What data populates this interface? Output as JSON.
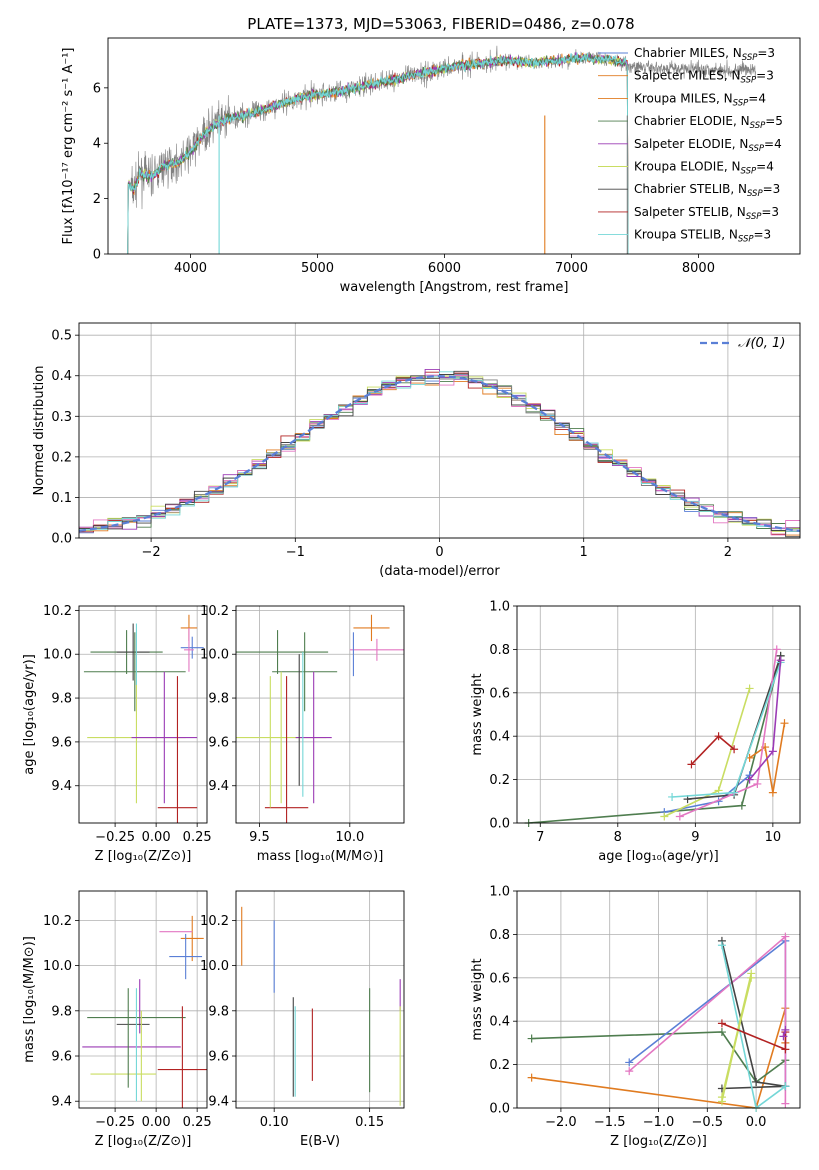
{
  "figure": {
    "title": "PLATE=1373, MJD=53063, FIBERID=0486, z=0.078",
    "colors": {
      "blue": "#5a7fd6",
      "orange": "#e07b20",
      "green": "#4f7d4f",
      "red": "#b22222",
      "purple": "#9b3bb5",
      "olive": "#c9dd62",
      "gray": "#808080",
      "cyan": "#74d7d7",
      "pink": "#e377c2",
      "darkgray": "#444444"
    }
  },
  "chart_data": [
    {
      "id": "spectrum",
      "type": "line",
      "xlabel": "wavelength [Angstrom, rest frame]",
      "ylabel": "Flux [fλ10⁻¹⁷ erg cm⁻² s⁻¹ A⁻¹]",
      "xlim": [
        3350,
        8800
      ],
      "ylim": [
        0,
        7.8
      ],
      "xticks": [
        4000,
        5000,
        6000,
        7000,
        8000
      ],
      "yticks": [
        0,
        2,
        4,
        6
      ],
      "grid": false,
      "legend_position": "right",
      "legend": [
        {
          "label": "Chabrier MILES, N",
          "sub": "SSP",
          "suffix": "=3",
          "color": "#5a7fd6"
        },
        {
          "label": "Salpeter MILES, N",
          "sub": "SSP",
          "suffix": "=3",
          "color": "#e07b20"
        },
        {
          "label": "Kroupa MILES, N",
          "sub": "SSP",
          "suffix": "=4",
          "color": "#e07b20"
        },
        {
          "label": "Chabrier ELODIE, N",
          "sub": "SSP",
          "suffix": "=5",
          "color": "#4f7d4f"
        },
        {
          "label": "Salpeter ELODIE, N",
          "sub": "SSP",
          "suffix": "=4",
          "color": "#9b3bb5"
        },
        {
          "label": "Kroupa ELODIE, N",
          "sub": "SSP",
          "suffix": "=4",
          "color": "#c9dd62"
        },
        {
          "label": "Chabrier STELIB, N",
          "sub": "SSP",
          "suffix": "=3",
          "color": "#444444"
        },
        {
          "label": "Salpeter STELIB, N",
          "sub": "SSP",
          "suffix": "=3",
          "color": "#b22222"
        },
        {
          "label": "Kroupa STELIB, N",
          "sub": "SSP",
          "suffix": "=3",
          "color": "#74d7d7"
        }
      ],
      "model_continuum": {
        "x": [
          3500,
          3550,
          3600,
          3700,
          3800,
          3900,
          4000,
          4100,
          4200,
          4300,
          4400,
          4500,
          4700,
          4900,
          5100,
          5300,
          5500,
          5700,
          5900,
          6100,
          6300,
          6500,
          6700,
          6900,
          7100,
          7300,
          7440
        ],
        "y": [
          2.6,
          2.3,
          2.9,
          2.8,
          3.2,
          3.3,
          3.7,
          4.3,
          4.7,
          4.9,
          5.0,
          5.1,
          5.4,
          5.7,
          5.8,
          6.0,
          6.2,
          6.4,
          6.6,
          6.8,
          6.9,
          7.0,
          6.9,
          7.0,
          7.1,
          7.0,
          6.9
        ]
      },
      "data_range": [
        3530,
        8450
      ]
    },
    {
      "id": "residuals",
      "type": "histogram",
      "xlabel": "(data-model)/error",
      "ylabel": "Normed distribution",
      "xlim": [
        -2.5,
        2.5
      ],
      "ylim": [
        0,
        0.53
      ],
      "xticks": [
        -2,
        -1,
        0,
        1,
        2
      ],
      "yticks": [
        0.0,
        0.1,
        0.2,
        0.3,
        0.4,
        0.5
      ],
      "grid": true,
      "legend_position": "top-right",
      "legend": [
        {
          "label": "𝒩(0, 1)",
          "color": "#5a7fd6",
          "style": "dashed"
        }
      ],
      "bin_width": 0.1
    },
    {
      "id": "age_vs_Z",
      "type": "errorbar",
      "xlabel": "Z [log₁₀(Z/Z⊙)]",
      "ylabel": "age  [log₁₀(age/yr)]",
      "xlim": [
        -0.47,
        0.31
      ],
      "ylim": [
        9.23,
        10.22
      ],
      "xticks": [
        -0.25,
        0.0,
        0.25
      ],
      "xticklabels": [
        "−0.25",
        "0.00",
        "0.25"
      ],
      "yticks": [
        9.4,
        9.6,
        9.8,
        10.0,
        10.2
      ],
      "grid": true,
      "points": [
        {
          "x": 0.2,
          "y": 10.12,
          "xerr": 0.05,
          "yerr": 0.06,
          "color": "#e07b20"
        },
        {
          "x": 0.22,
          "y": 10.03,
          "xerr": 0.07,
          "yerr": 0.05,
          "color": "#5a7fd6"
        },
        {
          "x": 0.2,
          "y": 10.02,
          "xerr": 0.03,
          "yerr": 0.1,
          "color": "#e377c2"
        },
        {
          "x": -0.18,
          "y": 10.01,
          "xerr": 0.22,
          "yerr": 0.1,
          "color": "#4f7d4f"
        },
        {
          "x": -0.14,
          "y": 10.01,
          "xerr": 0.1,
          "yerr": 0.13,
          "color": "#444444"
        },
        {
          "x": -0.13,
          "y": 9.92,
          "xerr": 0.31,
          "yerr": 0.18,
          "color": "#4f7d4f"
        },
        {
          "x": -0.12,
          "y": 9.62,
          "xerr": 0.3,
          "yerr": 0.3,
          "color": "#c9dd62"
        },
        {
          "x": 0.05,
          "y": 9.62,
          "xerr": 0.2,
          "yerr": 0.3,
          "color": "#9b3bb5"
        },
        {
          "x": 0.13,
          "y": 9.3,
          "xerr": 0.12,
          "yerr": 0.6,
          "color": "#b22222"
        },
        {
          "x": -0.12,
          "y": 10.0,
          "xerr": 0.0,
          "yerr": 0.14,
          "color": "#74d7d7"
        }
      ]
    },
    {
      "id": "age_vs_mass",
      "type": "errorbar",
      "xlabel": "mass [log₁₀(M/M⊙)]",
      "ylabel": "",
      "xlim": [
        9.37,
        10.3
      ],
      "ylim": [
        9.23,
        10.22
      ],
      "xticks": [
        9.5,
        10.0
      ],
      "xticklabels": [
        "9.5",
        "10.0"
      ],
      "yticks": [
        9.4,
        9.6,
        9.8,
        10.0,
        10.2
      ],
      "grid": true,
      "points": [
        {
          "x": 10.12,
          "y": 10.12,
          "xerr": 0.1,
          "yerr": 0.06,
          "color": "#e07b20"
        },
        {
          "x": 10.15,
          "y": 10.02,
          "xerr": 0.15,
          "yerr": 0.05,
          "color": "#e377c2"
        },
        {
          "x": 10.02,
          "y": 10.0,
          "xerr": 0.0,
          "yerr": 0.1,
          "color": "#5a7fd6"
        },
        {
          "x": 9.6,
          "y": 10.01,
          "xerr": 0.28,
          "yerr": 0.1,
          "color": "#4f7d4f"
        },
        {
          "x": 9.75,
          "y": 9.92,
          "xerr": 0.18,
          "yerr": 0.18,
          "color": "#4f7d4f"
        },
        {
          "x": 9.62,
          "y": 9.62,
          "xerr": 0.25,
          "yerr": 0.3,
          "color": "#c9dd62"
        },
        {
          "x": 9.8,
          "y": 9.62,
          "xerr": 0.1,
          "yerr": 0.3,
          "color": "#9b3bb5"
        },
        {
          "x": 9.65,
          "y": 9.3,
          "xerr": 0.12,
          "yerr": 0.6,
          "color": "#b22222"
        },
        {
          "x": 9.56,
          "y": 9.6,
          "xerr": 0.0,
          "yerr": 0.3,
          "color": "#c9dd62"
        },
        {
          "x": 9.72,
          "y": 9.7,
          "xerr": 0.0,
          "yerr": 0.3,
          "color": "#444444"
        },
        {
          "x": 9.74,
          "y": 9.68,
          "xerr": 0.0,
          "yerr": 0.33,
          "color": "#74d7d7"
        }
      ]
    },
    {
      "id": "weight_vs_age",
      "type": "line",
      "xlabel": "age  [log₁₀(age/yr)]",
      "ylabel": "mass weight",
      "xlim": [
        6.7,
        10.35
      ],
      "ylim": [
        0,
        1.0
      ],
      "xticks": [
        7,
        8,
        9,
        10
      ],
      "yticks": [
        0.0,
        0.2,
        0.4,
        0.6,
        0.8,
        1.0
      ],
      "grid": true,
      "series": [
        {
          "color": "#4f7d4f",
          "x": [
            6.85,
            9.6,
            10.1
          ],
          "y": [
            0.0,
            0.08,
            0.77
          ]
        },
        {
          "color": "#5a7fd6",
          "x": [
            8.6,
            9.3,
            9.7
          ],
          "y": [
            0.05,
            0.1,
            0.22
          ]
        },
        {
          "color": "#c9dd62",
          "x": [
            8.6,
            9.3,
            9.7
          ],
          "y": [
            0.03,
            0.15,
            0.62
          ]
        },
        {
          "color": "#444444",
          "x": [
            8.9,
            9.5,
            10.1
          ],
          "y": [
            0.11,
            0.13,
            0.77
          ]
        },
        {
          "color": "#b22222",
          "x": [
            8.95,
            9.3,
            9.5
          ],
          "y": [
            0.27,
            0.4,
            0.34
          ]
        },
        {
          "color": "#e07b20",
          "x": [
            9.7,
            9.9,
            10.0,
            10.15
          ],
          "y": [
            0.3,
            0.35,
            0.14,
            0.46
          ]
        },
        {
          "color": "#e377c2",
          "x": [
            8.8,
            9.8,
            10.05
          ],
          "y": [
            0.03,
            0.18,
            0.8
          ]
        },
        {
          "color": "#74d7d7",
          "x": [
            8.7,
            9.5,
            10.1
          ],
          "y": [
            0.12,
            0.14,
            0.74
          ]
        },
        {
          "color": "#9b3bb5",
          "x": [
            9.7,
            10.0,
            10.1
          ],
          "y": [
            0.2,
            0.33,
            0.75
          ]
        }
      ]
    },
    {
      "id": "mass_vs_Z",
      "type": "errorbar",
      "xlabel": "Z [log₁₀(Z/Z⊙)]",
      "ylabel": "mass [log₁₀(M/M⊙)]",
      "xlim": [
        -0.47,
        0.31
      ],
      "ylim": [
        9.37,
        10.33
      ],
      "xticks": [
        -0.25,
        0.0,
        0.25
      ],
      "xticklabels": [
        "−0.25",
        "0.00",
        "0.25"
      ],
      "yticks": [
        9.4,
        9.6,
        9.8,
        10.0,
        10.2
      ],
      "grid": true,
      "points": [
        {
          "x": 0.22,
          "y": 10.12,
          "xerr": 0.07,
          "yerr": 0.1,
          "color": "#e07b20"
        },
        {
          "x": 0.12,
          "y": 10.15,
          "xerr": 0.1,
          "yerr": 0.0,
          "color": "#e377c2"
        },
        {
          "x": 0.18,
          "y": 10.04,
          "xerr": 0.1,
          "yerr": 0.1,
          "color": "#5a7fd6"
        },
        {
          "x": -0.1,
          "y": 9.82,
          "xerr": 0.0,
          "yerr": 0.12,
          "color": "#9b3bb5"
        },
        {
          "x": -0.12,
          "y": 9.77,
          "xerr": 0.3,
          "yerr": 0.0,
          "color": "#4f7d4f"
        },
        {
          "x": -0.14,
          "y": 9.74,
          "xerr": 0.1,
          "yerr": 0.0,
          "color": "#444444"
        },
        {
          "x": -0.15,
          "y": 9.64,
          "xerr": 0.3,
          "yerr": 0.0,
          "color": "#9b3bb5"
        },
        {
          "x": 0.16,
          "y": 9.54,
          "xerr": 0.15,
          "yerr": 0.28,
          "color": "#b22222"
        },
        {
          "x": -0.2,
          "y": 9.52,
          "xerr": 0.2,
          "yerr": 0.0,
          "color": "#c9dd62"
        },
        {
          "x": -0.17,
          "y": 9.68,
          "xerr": 0.0,
          "yerr": 0.22,
          "color": "#4f7d4f"
        },
        {
          "x": -0.12,
          "y": 9.65,
          "xerr": 0.0,
          "yerr": 0.25,
          "color": "#74d7d7"
        },
        {
          "x": -0.09,
          "y": 9.6,
          "xerr": 0.0,
          "yerr": 0.2,
          "color": "#c9dd62"
        }
      ]
    },
    {
      "id": "mass_vs_ebv",
      "type": "errorbar",
      "xlabel": "E(B-V)",
      "ylabel": "",
      "xlim": [
        0.08,
        0.168
      ],
      "ylim": [
        9.37,
        10.33
      ],
      "xticks": [
        0.1,
        0.15
      ],
      "xticklabels": [
        "0.10",
        "0.15"
      ],
      "yticks": [
        9.4,
        9.6,
        9.8,
        10.0,
        10.2
      ],
      "grid": true,
      "points": [
        {
          "x": 0.083,
          "y": 10.13,
          "xerr": 0.0,
          "yerr": 0.13,
          "color": "#e07b20"
        },
        {
          "x": 0.1,
          "y": 10.04,
          "xerr": 0.0,
          "yerr": 0.16,
          "color": "#5a7fd6"
        },
        {
          "x": 0.11,
          "y": 9.64,
          "xerr": 0.0,
          "yerr": 0.22,
          "color": "#444444"
        },
        {
          "x": 0.111,
          "y": 9.62,
          "xerr": 0.0,
          "yerr": 0.2,
          "color": "#74d7d7"
        },
        {
          "x": 0.12,
          "y": 9.65,
          "xerr": 0.0,
          "yerr": 0.16,
          "color": "#b22222"
        },
        {
          "x": 0.15,
          "y": 9.67,
          "xerr": 0.0,
          "yerr": 0.23,
          "color": "#4f7d4f"
        },
        {
          "x": 0.166,
          "y": 9.87,
          "xerr": 0.0,
          "yerr": 0.07,
          "color": "#9b3bb5"
        },
        {
          "x": 0.166,
          "y": 9.6,
          "xerr": 0.0,
          "yerr": 0.22,
          "color": "#c9dd62"
        }
      ]
    },
    {
      "id": "weight_vs_Z",
      "type": "line",
      "xlabel": "Z [log₁₀(Z/Z⊙)]",
      "ylabel": "mass weight",
      "xlim": [
        -2.45,
        0.45
      ],
      "ylim": [
        0,
        1.0
      ],
      "xticks": [
        -2.0,
        -1.5,
        -1.0,
        -0.5,
        0.0
      ],
      "xticklabels": [
        "−2.0",
        "−1.5",
        "−1.0",
        "−0.5",
        "0.0"
      ],
      "yticks": [
        0.0,
        0.2,
        0.4,
        0.6,
        0.8,
        1.0
      ],
      "grid": true,
      "series": [
        {
          "color": "#e07b20",
          "x": [
            -2.3,
            0.0,
            0.3,
            0.3
          ],
          "y": [
            0.14,
            0.0,
            0.46,
            0.3
          ]
        },
        {
          "color": "#4f7d4f",
          "x": [
            -2.3,
            -0.35,
            0.0,
            0.3
          ],
          "y": [
            0.32,
            0.35,
            0.12,
            0.22
          ]
        },
        {
          "color": "#5a7fd6",
          "x": [
            -1.3,
            0.3,
            0.3
          ],
          "y": [
            0.21,
            0.77,
            0.1
          ]
        },
        {
          "color": "#e377c2",
          "x": [
            -1.3,
            0.3,
            0.3
          ],
          "y": [
            0.17,
            0.79,
            0.02
          ]
        },
        {
          "color": "#444444",
          "x": [
            -0.35,
            0.0,
            0.3,
            -0.35
          ],
          "y": [
            0.77,
            0.12,
            0.1,
            0.09
          ]
        },
        {
          "color": "#74d7d7",
          "x": [
            -0.35,
            0.0,
            0.3
          ],
          "y": [
            0.75,
            0.0,
            0.1
          ]
        },
        {
          "color": "#c9dd62",
          "x": [
            -0.35,
            -0.05,
            -0.35,
            -0.05
          ],
          "y": [
            0.03,
            0.62,
            0.05,
            0.6
          ]
        },
        {
          "color": "#b22222",
          "x": [
            -0.35,
            0.3,
            0.3
          ],
          "y": [
            0.39,
            0.27,
            0.35
          ]
        },
        {
          "color": "#9b3bb5",
          "x": [
            0.28,
            0.3
          ],
          "y": [
            0.33,
            0.36
          ]
        }
      ]
    }
  ]
}
